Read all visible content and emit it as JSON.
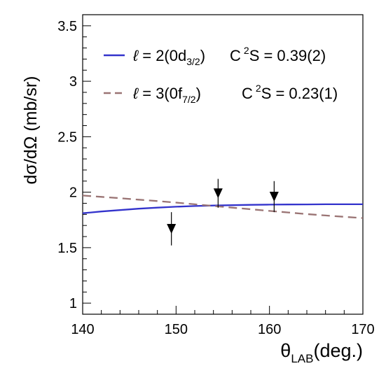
{
  "chart_data": {
    "type": "line",
    "xlabel": "θLAB(deg.)",
    "xlabel_parts": {
      "main": "θ",
      "sub": "LAB",
      "tail": "(deg.)"
    },
    "ylabel": "dσ/dΩ (mb/sr)",
    "xlim": [
      140,
      170
    ],
    "ylim": [
      0.9,
      3.6
    ],
    "x_ticks": [
      140,
      150,
      160,
      170
    ],
    "y_ticks": [
      1,
      1.5,
      2,
      2.5,
      3,
      3.5
    ],
    "x_tick_labels": [
      "140",
      "150",
      "160",
      "170"
    ],
    "y_tick_labels": [
      "1",
      "1.5",
      "2",
      "2.5",
      "3",
      "3.5"
    ],
    "grid": false,
    "legend_position": "top",
    "series": [
      {
        "name": "ℓ = 2(0d3/2)  C²S = 0.39(2)",
        "legend": {
          "ell": "ℓ",
          "eq": " = 2(0d",
          "sub": "3/2",
          "close": ")",
          "c": "C",
          "sup": "2",
          "s": "S = 0.39(2)"
        },
        "color": "#3333cc",
        "style": "solid",
        "x": [
          140,
          142,
          144,
          146,
          148,
          150,
          152,
          154,
          156,
          158,
          160,
          162,
          164,
          166,
          168,
          170
        ],
        "y": [
          1.81,
          1.826,
          1.839,
          1.851,
          1.861,
          1.869,
          1.875,
          1.88,
          1.883,
          1.886,
          1.888,
          1.889,
          1.89,
          1.891,
          1.891,
          1.891
        ]
      },
      {
        "name": "ℓ = 3(0f7/2)  C²S = 0.23(1)",
        "legend": {
          "ell": "ℓ",
          "eq": " = 3(0f",
          "sub": "7/2",
          "close": ")",
          "c": "C",
          "sup": "2",
          "s": "S = 0.23(1)"
        },
        "color": "#9a7474",
        "style": "dashed",
        "x": [
          140,
          142,
          144,
          146,
          148,
          150,
          152,
          154,
          156,
          158,
          160,
          162,
          164,
          166,
          168,
          170
        ],
        "y": [
          1.97,
          1.958,
          1.946,
          1.933,
          1.92,
          1.906,
          1.891,
          1.876,
          1.861,
          1.846,
          1.831,
          1.817,
          1.803,
          1.79,
          1.778,
          1.767
        ]
      }
    ],
    "points": {
      "marker": "down-triangle",
      "color": "#000000",
      "x": [
        149.5,
        154.5,
        160.5
      ],
      "y": [
        1.67,
        1.99,
        1.96
      ],
      "err": [
        0.15,
        0.13,
        0.14
      ]
    }
  }
}
